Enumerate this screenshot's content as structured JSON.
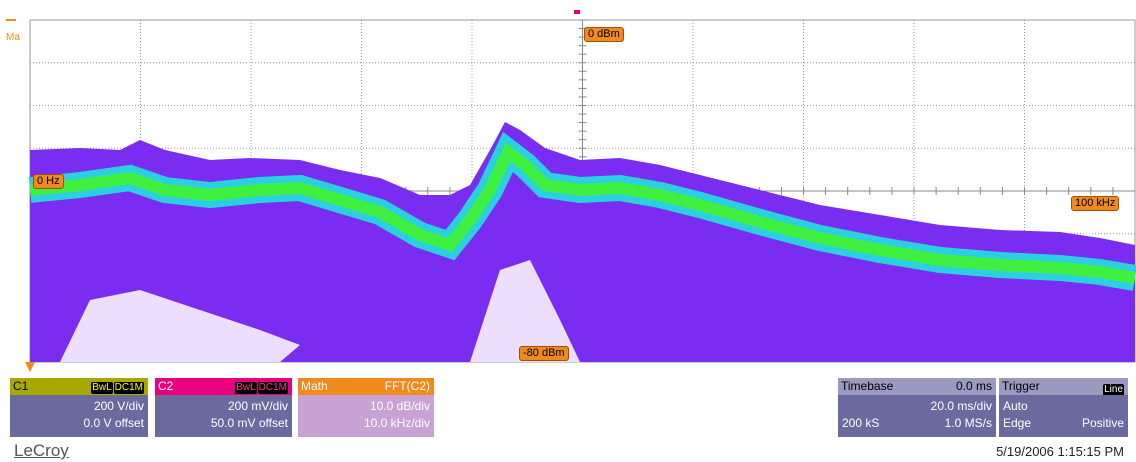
{
  "display": {
    "math_label": "Ma",
    "markers": {
      "top": "0 dBm",
      "left": "0 Hz",
      "right": "100 kHz",
      "bottom": "-80 dBm"
    }
  },
  "channels": [
    {
      "name": "C1",
      "bandwidth": "BwL",
      "coupling": "DC1M",
      "scale": "200 V/div",
      "offset": "0.0 V offset"
    },
    {
      "name": "C2",
      "bandwidth": "BwL",
      "coupling": "DC1M",
      "scale": "200 mV/div",
      "offset": "50.0 mV offset"
    }
  ],
  "math": {
    "name": "Math",
    "function": "FFT(C2)",
    "scale": "10.0 dB/div",
    "span": "10.0 kHz/div"
  },
  "timebase": {
    "label": "Timebase",
    "delay": "0.0 ms",
    "scale": "20.0 ms/div",
    "samples": "200 kS",
    "rate": "1.0 MS/s"
  },
  "trigger": {
    "label": "Trigger",
    "source": "Line",
    "mode": "Auto",
    "type": "Edge",
    "slope": "Positive"
  },
  "footer": {
    "brand": "LeCroy",
    "timestamp": "5/19/2006 1:15:15 PM"
  }
}
